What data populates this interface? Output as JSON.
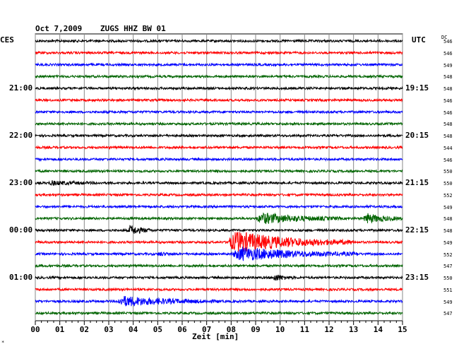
{
  "header": {
    "date": "Oct 7,2009",
    "station": "ZUGS HHZ BW 01"
  },
  "left_axis_label": "CES",
  "right_axis_label": "UTC",
  "dc_label": "DC",
  "footer_mark": "*",
  "chart_data": {
    "type": "line",
    "title": "Oct 7,2009   ZUGS HHZ BW 01",
    "xlabel": "Zeit [min]",
    "x_ticks": [
      "00",
      "01",
      "02",
      "03",
      "04",
      "05",
      "06",
      "07",
      "08",
      "09",
      "10",
      "11",
      "12",
      "13",
      "14",
      "15"
    ],
    "xlim": [
      0,
      15
    ],
    "grid": true,
    "trace_colors": [
      "#000000",
      "#ff0000",
      "#0000ff",
      "#006400"
    ],
    "left_time_labels": [
      {
        "row": 4,
        "label": "21:00"
      },
      {
        "row": 8,
        "label": "22:00"
      },
      {
        "row": 12,
        "label": "23:00"
      },
      {
        "row": 16,
        "label": "00:00"
      },
      {
        "row": 20,
        "label": "01:00"
      }
    ],
    "right_time_labels": [
      {
        "row": 4,
        "label": "19:15"
      },
      {
        "row": 8,
        "label": "20:15"
      },
      {
        "row": 12,
        "label": "21:15"
      },
      {
        "row": 16,
        "label": "22:15"
      },
      {
        "row": 20,
        "label": "23:15"
      }
    ],
    "dc_values": [
      546,
      546,
      549,
      548,
      548,
      546,
      546,
      548,
      548,
      544,
      546,
      550,
      550,
      552,
      549,
      548,
      548,
      549,
      552,
      547,
      550,
      551,
      549,
      547
    ],
    "events": [
      {
        "row": 12,
        "start_min": 0.5,
        "end_min": 2.8,
        "amp": 0.35
      },
      {
        "row": 15,
        "start_min": 9.0,
        "end_min": 12.5,
        "amp": 1.1
      },
      {
        "row": 15,
        "start_min": 13.4,
        "end_min": 15.0,
        "amp": 1.0
      },
      {
        "row": 16,
        "start_min": 3.8,
        "end_min": 4.8,
        "amp": 1.0
      },
      {
        "row": 17,
        "start_min": 7.8,
        "end_min": 13.0,
        "amp": 2.2
      },
      {
        "row": 18,
        "start_min": 5.0,
        "end_min": 5.6,
        "amp": 0.4
      },
      {
        "row": 18,
        "start_min": 8.0,
        "end_min": 13.2,
        "amp": 1.4
      },
      {
        "row": 20,
        "start_min": 9.7,
        "end_min": 10.6,
        "amp": 0.7
      },
      {
        "row": 22,
        "start_min": 3.3,
        "end_min": 7.5,
        "amp": 1.0
      }
    ]
  }
}
